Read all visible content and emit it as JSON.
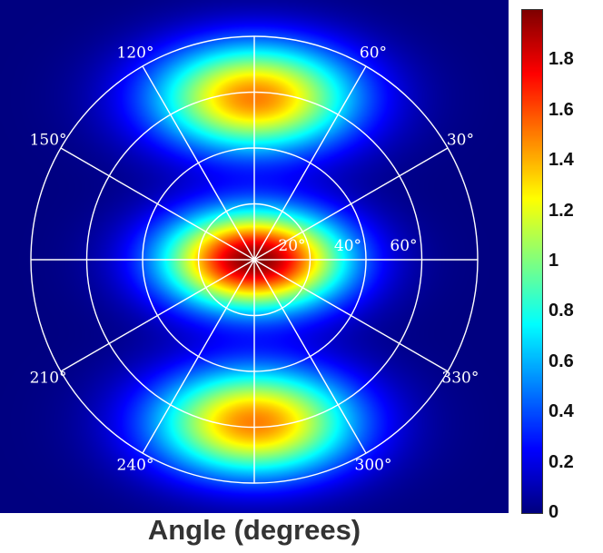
{
  "chart_data": {
    "type": "heatmap",
    "subtype": "polar",
    "xlabel": "Angle (degrees)",
    "angle_ticks": [
      {
        "deg": 0,
        "label": ""
      },
      {
        "deg": 30,
        "label": "30°"
      },
      {
        "deg": 60,
        "label": "60°"
      },
      {
        "deg": 90,
        "label": ""
      },
      {
        "deg": 120,
        "label": "120°"
      },
      {
        "deg": 150,
        "label": "150°"
      },
      {
        "deg": 180,
        "label": ""
      },
      {
        "deg": 210,
        "label": "210°"
      },
      {
        "deg": 240,
        "label": "240°"
      },
      {
        "deg": 270,
        "label": ""
      },
      {
        "deg": 300,
        "label": "300°"
      },
      {
        "deg": 330,
        "label": "330°"
      }
    ],
    "radial_ticks": [
      {
        "value": 20,
        "label": "20°"
      },
      {
        "value": 40,
        "label": "40°"
      },
      {
        "value": 60,
        "label": "60°"
      }
    ],
    "r_max": 80,
    "colorbar": {
      "colormap": "jet",
      "range": [
        0,
        2.0
      ],
      "ticks": [
        "0",
        "0.2",
        "0.4",
        "0.6",
        "0.8",
        "1",
        "1.2",
        "1.4",
        "1.6",
        "1.8"
      ],
      "tick_values": [
        0,
        0.2,
        0.4,
        0.6,
        0.8,
        1.0,
        1.2,
        1.4,
        1.6,
        1.8
      ]
    },
    "intensity_peaks": [
      {
        "angle_deg": 0,
        "radius": 0,
        "value": 2.0
      },
      {
        "angle_deg": 90,
        "radius": 60,
        "value": 1.5
      },
      {
        "angle_deg": 270,
        "radius": 60,
        "value": 1.5
      }
    ],
    "grid": true,
    "grid_color": "#ffffff",
    "background_color": "#00008c"
  }
}
